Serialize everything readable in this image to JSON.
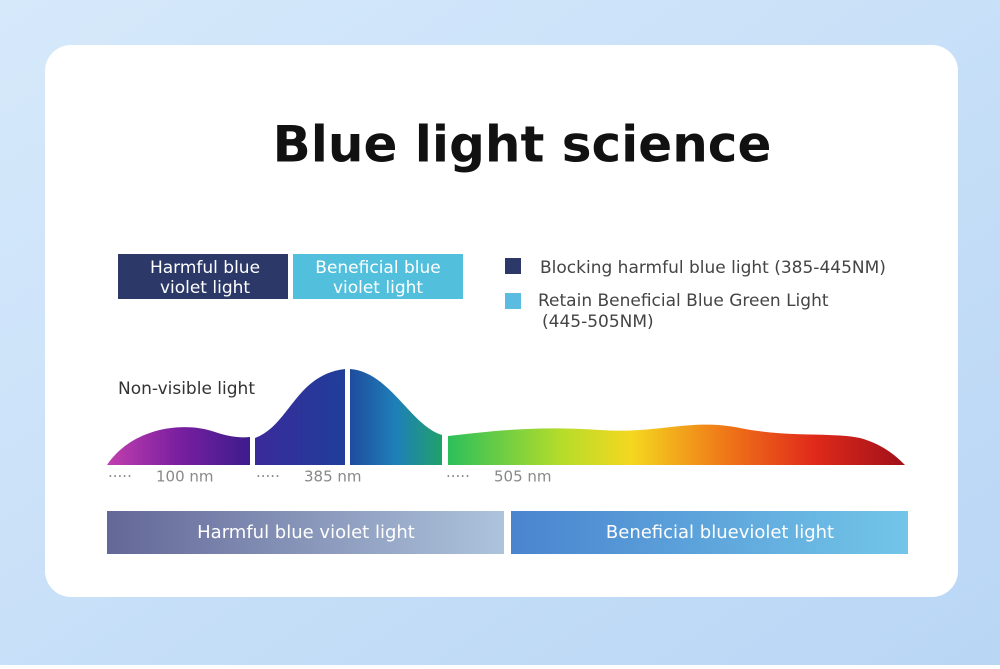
{
  "title": "Blue light science",
  "tags": [
    {
      "lines": [
        "Harmful blue",
        "violet light"
      ]
    },
    {
      "lines": [
        "Beneficial blue",
        "violet light"
      ]
    }
  ],
  "legend": [
    {
      "lines": [
        "Blocking harmful blue light (385-445NM)"
      ]
    },
    {
      "lines": [
        "Retain Beneficial Blue Green Light",
        "(445-505NM)"
      ]
    }
  ],
  "spectrum": {
    "label": "Non-visible light",
    "markers": [
      "100 nm",
      "385 nm",
      "505 nm"
    ]
  },
  "bands": [
    "Harmful blue violet light",
    "Beneficial blueviolet light"
  ]
}
